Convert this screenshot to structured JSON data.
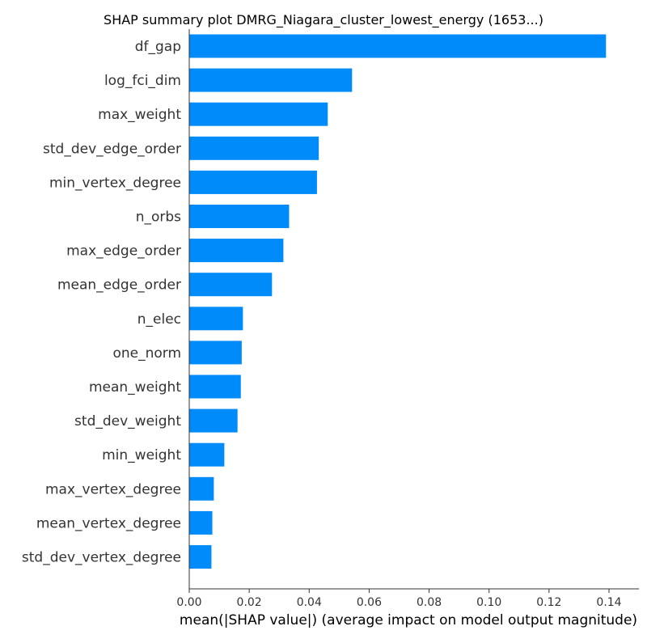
{
  "chart_data": {
    "type": "bar",
    "orientation": "horizontal",
    "title": "SHAP summary plot DMRG_Niagara_cluster_lowest_energy (1653...)",
    "xlabel": "mean(|SHAP value|) (average impact on model output magnitude)",
    "ylabel": "",
    "categories": [
      "df_gap",
      "log_fci_dim",
      "max_weight",
      "std_dev_edge_order",
      "min_vertex_degree",
      "n_orbs",
      "max_edge_order",
      "mean_edge_order",
      "n_elec",
      "one_norm",
      "mean_weight",
      "std_dev_weight",
      "min_weight",
      "max_vertex_degree",
      "mean_vertex_degree",
      "std_dev_vertex_degree"
    ],
    "values": [
      0.139,
      0.0543,
      0.0462,
      0.0432,
      0.0426,
      0.0333,
      0.0314,
      0.0276,
      0.0179,
      0.0175,
      0.0172,
      0.0161,
      0.0117,
      0.0082,
      0.0077,
      0.0074
    ],
    "xlim": [
      0.0,
      0.15
    ],
    "xticks": [
      "0.00",
      "0.02",
      "0.04",
      "0.06",
      "0.08",
      "0.10",
      "0.12",
      "0.14"
    ],
    "grid": false,
    "bar_color": "#008bfb",
    "axis_color": "#333333"
  }
}
